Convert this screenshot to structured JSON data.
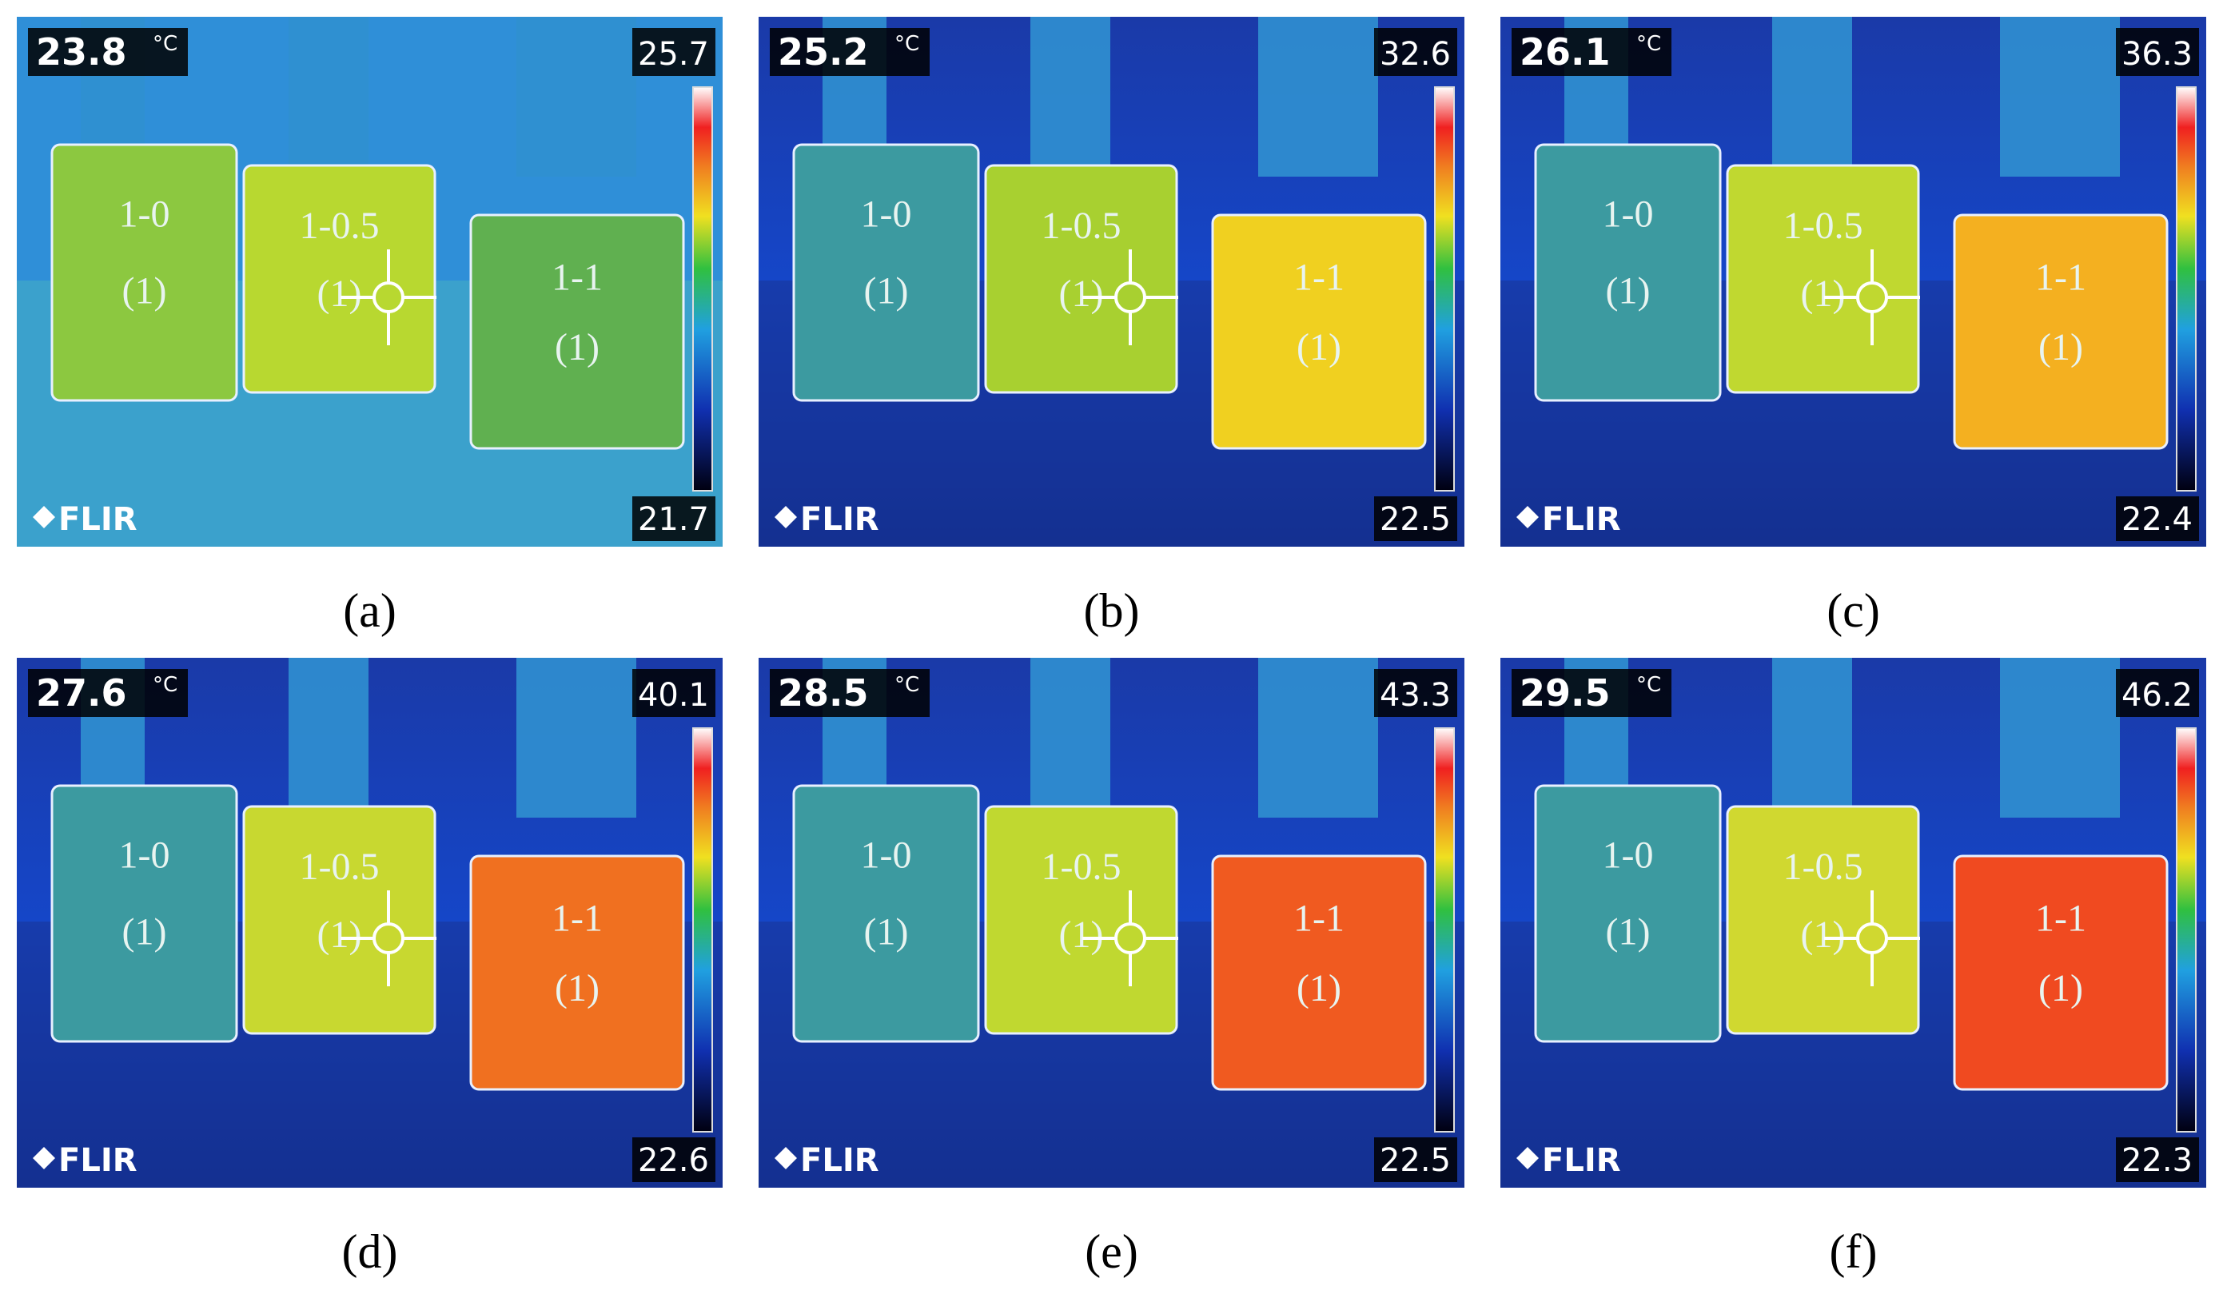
{
  "panels": [
    {
      "caption": "(a)",
      "spot": "23.8",
      "unit": "°C",
      "max": "25.7",
      "min": "21.7",
      "brand": "FLIR",
      "cube_labels": [
        "1-0",
        "(1)",
        "1-0.5",
        "(1)",
        "1-1",
        "(1)"
      ]
    },
    {
      "caption": "(b)",
      "spot": "25.2",
      "unit": "°C",
      "max": "32.6",
      "min": "22.5",
      "brand": "FLIR",
      "cube_labels": [
        "1-0",
        "(1)",
        "1-0.5",
        "(1)",
        "1-1",
        "(1)"
      ]
    },
    {
      "caption": "(c)",
      "spot": "26.1",
      "unit": "°C",
      "max": "36.3",
      "min": "22.4",
      "brand": "FLIR",
      "cube_labels": [
        "1-0",
        "(1)",
        "1-0.5",
        "(1)",
        "1-1",
        "(1)"
      ]
    },
    {
      "caption": "(d)",
      "spot": "27.6",
      "unit": "°C",
      "max": "40.1",
      "min": "22.6",
      "brand": "FLIR",
      "cube_labels": [
        "1-0",
        "(1)",
        "1-0.5",
        "(1)",
        "1-1",
        "(1)"
      ]
    },
    {
      "caption": "(e)",
      "spot": "28.5",
      "unit": "°C",
      "max": "43.3",
      "min": "22.5",
      "brand": "FLIR",
      "cube_labels": [
        "1-0",
        "(1)",
        "1-0.5",
        "(1)",
        "1-1",
        "(1)"
      ]
    },
    {
      "caption": "(f)",
      "spot": "29.5",
      "unit": "°C",
      "max": "46.2",
      "min": "22.3",
      "brand": "FLIR",
      "cube_labels": [
        "1-0",
        "(1)",
        "1-0.5",
        "(1)",
        "1-1",
        "(1)"
      ]
    }
  ]
}
